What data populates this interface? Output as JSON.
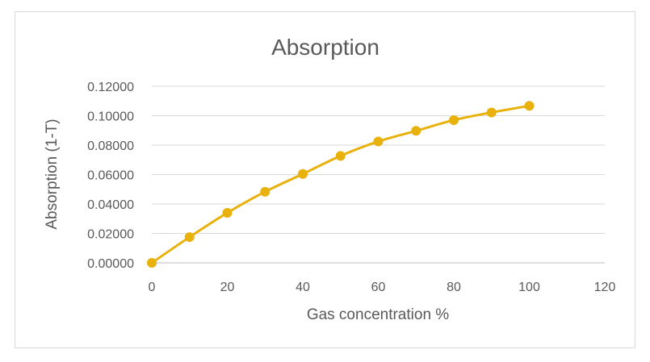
{
  "chart_data": {
    "type": "line",
    "title": "Absorption",
    "xlabel": "Gas concentration %",
    "ylabel": "Absorption (1-T)",
    "xlim": [
      0,
      120
    ],
    "ylim": [
      0,
      0.12
    ],
    "x_ticks": [
      "0",
      "20",
      "40",
      "60",
      "80",
      "100",
      "120"
    ],
    "y_ticks": [
      "0.00000",
      "0.02000",
      "0.04000",
      "0.06000",
      "0.08000",
      "0.10000",
      "0.12000"
    ],
    "grid": true,
    "legend": "none",
    "series": [
      {
        "x": [
          0,
          10,
          20,
          30,
          40,
          50,
          60,
          70,
          80,
          90,
          100
        ],
        "y": [
          0.0,
          0.0175,
          0.034,
          0.0483,
          0.0604,
          0.0727,
          0.0825,
          0.0897,
          0.097,
          0.1022,
          0.1067
        ],
        "color": "#E8B10C"
      }
    ]
  }
}
